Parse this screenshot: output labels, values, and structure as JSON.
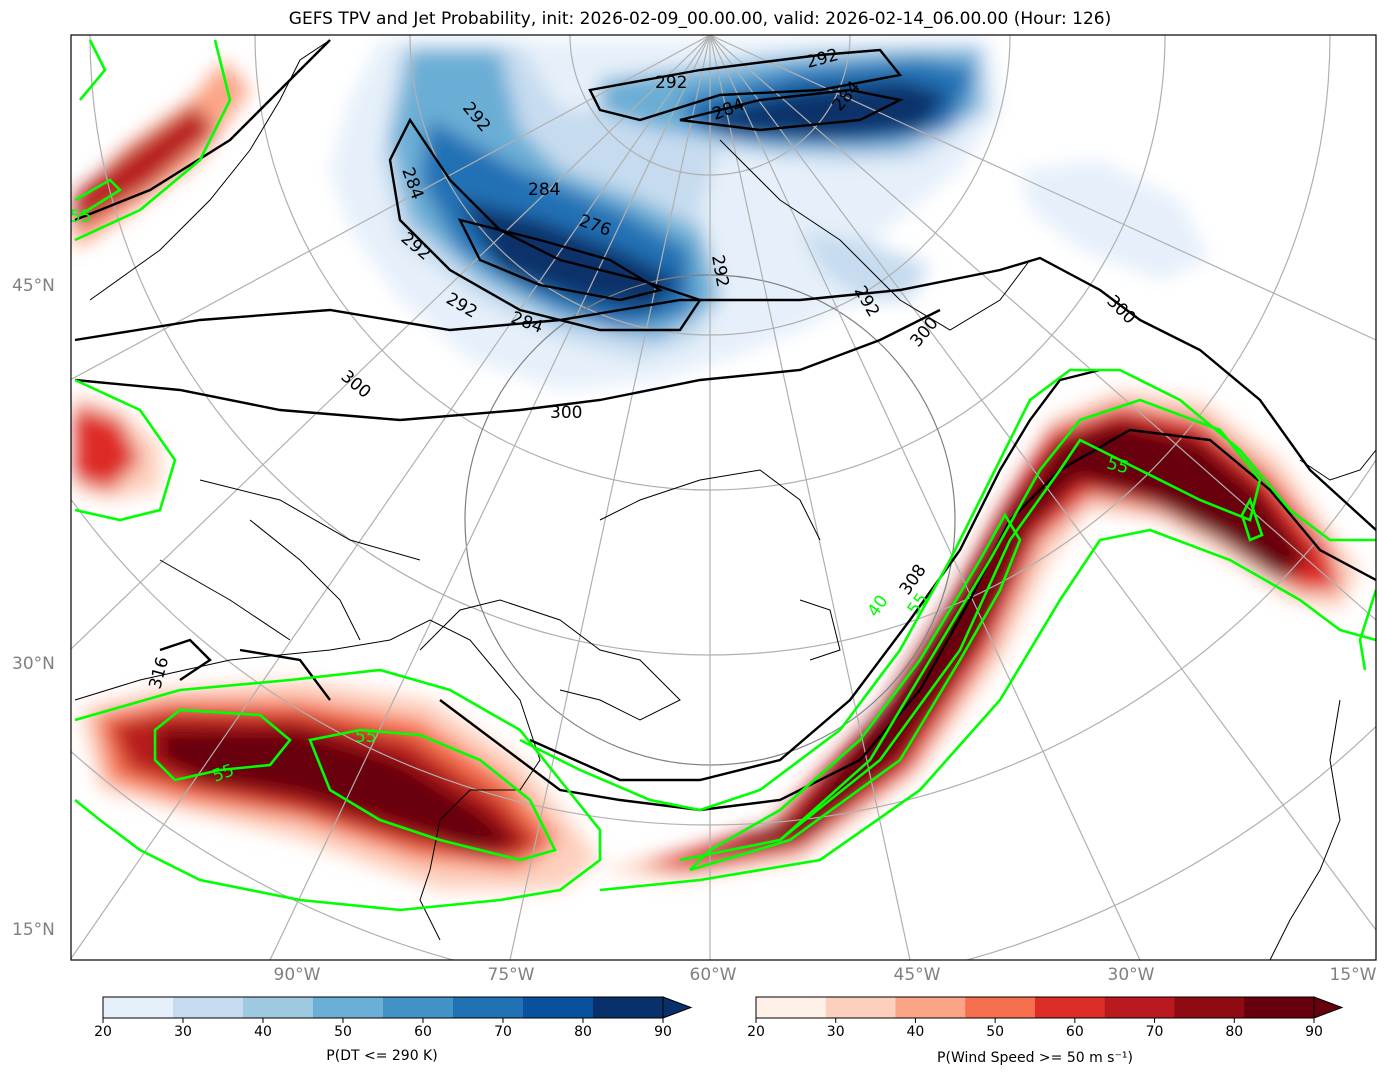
{
  "title": "GEFS TPV and Jet Probability, init: 2026-02-09_00.00.00, valid: 2026-02-14_06.00.00 (Hour: 126)",
  "lat_labels": [
    "45°N",
    "30°N",
    "15°N"
  ],
  "lon_labels": [
    "90°W",
    "75°W",
    "60°W",
    "45°W",
    "30°W",
    "15°W"
  ],
  "colorbar_left": {
    "label": "P(DT <= 290 K)",
    "ticks": [
      "20",
      "30",
      "40",
      "50",
      "60",
      "70",
      "80",
      "90"
    ],
    "colors": [
      "#e6f0fa",
      "#c6dbef",
      "#9ecae1",
      "#6baed6",
      "#4292c6",
      "#2171b5",
      "#08519c",
      "#08306b"
    ]
  },
  "colorbar_right": {
    "label": "P(Wind Speed >= 50 m s⁻¹)",
    "ticks": [
      "20",
      "30",
      "40",
      "50",
      "60",
      "70",
      "80",
      "90"
    ],
    "colors": [
      "#fff0e8",
      "#fdd0bd",
      "#fca486",
      "#f66f4e",
      "#de2c26",
      "#b81a1f",
      "#8e0b14",
      "#67000d"
    ]
  },
  "contour_labels_black": [
    "292",
    "292",
    "284",
    "284",
    "292",
    "284",
    "292",
    "276",
    "284",
    "292",
    "284",
    "292",
    "292",
    "300",
    "300",
    "300",
    "300",
    "308",
    "316"
  ],
  "contour_labels_green": [
    "55",
    "55",
    "55",
    "55",
    "40",
    "55"
  ]
}
